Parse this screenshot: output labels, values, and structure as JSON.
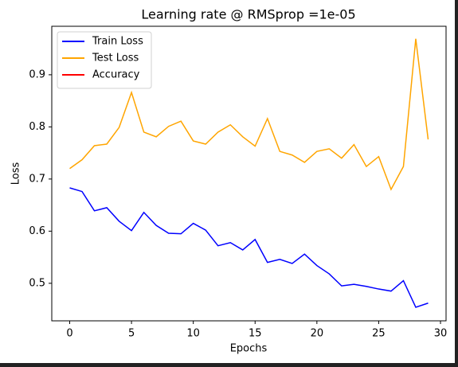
{
  "chart_data": {
    "type": "line",
    "title": "Learning rate @ RMSprop =1e-05",
    "xlabel": "Epochs",
    "ylabel": "Loss",
    "x": [
      0,
      1,
      2,
      3,
      4,
      5,
      6,
      7,
      8,
      9,
      10,
      11,
      12,
      13,
      14,
      15,
      16,
      17,
      18,
      19,
      20,
      21,
      22,
      23,
      24,
      25,
      26,
      27,
      28,
      29
    ],
    "series": [
      {
        "name": "Train Loss",
        "color": "#0000ff",
        "values": [
          0.683,
          0.676,
          0.639,
          0.645,
          0.619,
          0.601,
          0.636,
          0.611,
          0.596,
          0.595,
          0.615,
          0.602,
          0.572,
          0.578,
          0.564,
          0.584,
          0.54,
          0.546,
          0.538,
          0.556,
          0.534,
          0.518,
          0.495,
          0.498,
          0.494,
          0.489,
          0.485,
          0.505,
          0.454,
          0.462
        ]
      },
      {
        "name": "Test Loss",
        "color": "#ffa500",
        "values": [
          0.72,
          0.737,
          0.764,
          0.767,
          0.799,
          0.866,
          0.79,
          0.781,
          0.801,
          0.811,
          0.773,
          0.767,
          0.79,
          0.804,
          0.781,
          0.763,
          0.816,
          0.753,
          0.746,
          0.732,
          0.753,
          0.758,
          0.74,
          0.766,
          0.724,
          0.743,
          0.68,
          0.724,
          0.969,
          0.776
        ]
      },
      {
        "name": "Accuracy",
        "color": "#ff0000",
        "values": [
          null,
          null,
          null,
          null,
          null,
          null,
          null,
          null,
          null,
          null,
          null,
          null,
          null,
          null,
          null,
          null,
          null,
          null,
          null,
          null,
          null,
          null,
          null,
          null,
          null,
          null,
          null,
          null,
          null,
          null
        ]
      }
    ],
    "xlim": [
      -1.45,
      30.45
    ],
    "xticks": [
      0,
      5,
      10,
      15,
      20,
      25,
      30
    ],
    "ylim": [
      0.428,
      0.993
    ],
    "yticks": [
      0.5,
      0.6,
      0.7,
      0.8,
      0.9
    ],
    "legend": "upper left",
    "grid": false
  }
}
